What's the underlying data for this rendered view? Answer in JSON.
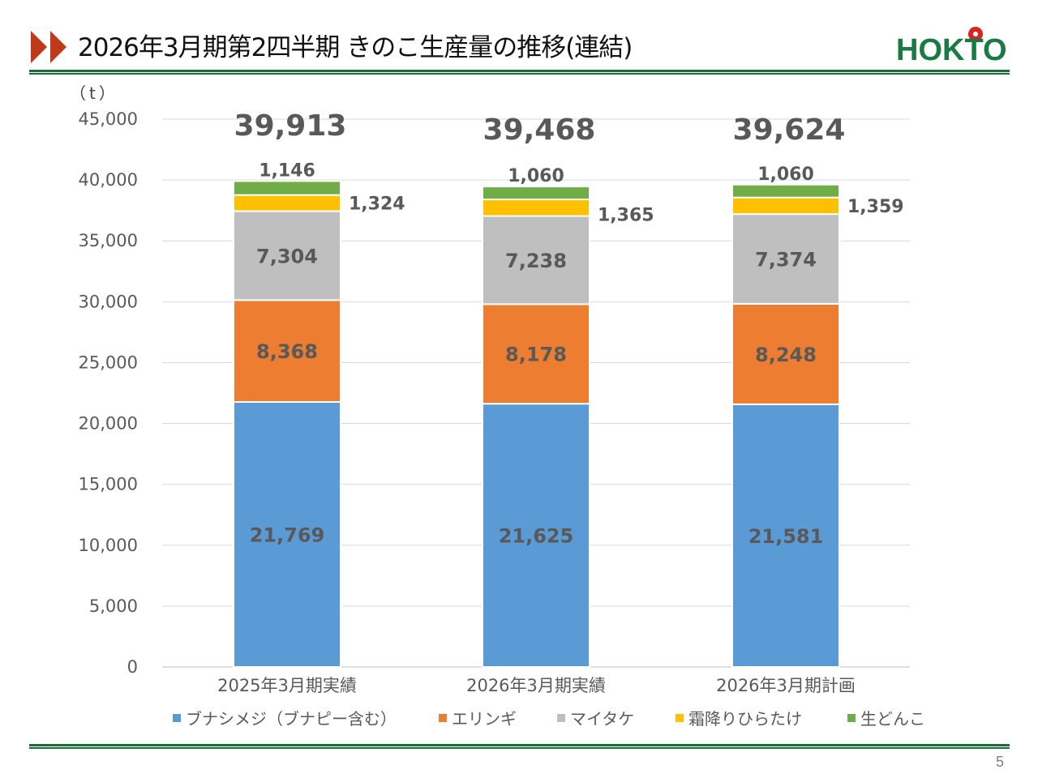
{
  "header": {
    "title": "2026年3月期第2四半期 きのこ生産量の推移(連結)",
    "logo_text": "HOKTO"
  },
  "page_number": "5",
  "colors": {
    "accent_red": "#c0391b",
    "rule_green": "#1e6b3c",
    "logo_green": "#1a7a43",
    "logo_red": "#d7261f"
  },
  "chart_data": {
    "type": "bar",
    "stacked": true,
    "unit_label": "（t）",
    "categories": [
      "2025年3月期実績",
      "2026年3月期実績",
      "2026年3月期計画"
    ],
    "series": [
      {
        "name": "ブナシメジ（ブナピー含む）",
        "color": "#5b9bd5",
        "values": [
          21769,
          21625,
          21581
        ],
        "labels": [
          "21,769",
          "21,625",
          "21,581"
        ]
      },
      {
        "name": "エリンギ",
        "color": "#ed7d31",
        "values": [
          8368,
          8178,
          8248
        ],
        "labels": [
          "8,368",
          "8,178",
          "8,248"
        ]
      },
      {
        "name": "マイタケ",
        "color": "#bfbfbf",
        "values": [
          7304,
          7238,
          7374
        ],
        "labels": [
          "7,304",
          "7,238",
          "7,374"
        ]
      },
      {
        "name": "霜降りひらたけ",
        "color": "#ffc000",
        "values": [
          1324,
          1365,
          1359
        ],
        "labels": [
          "1,324",
          "1,365",
          "1,359"
        ]
      },
      {
        "name": "生どんこ",
        "color": "#70ad47",
        "values": [
          1146,
          1060,
          1060
        ],
        "labels": [
          "1,146",
          "1,060",
          "1,060"
        ]
      }
    ],
    "totals": [
      "39,913",
      "39,468",
      "39,624"
    ],
    "ylim": [
      0,
      45000
    ],
    "yticks": [
      0,
      5000,
      10000,
      15000,
      20000,
      25000,
      30000,
      35000,
      40000,
      45000
    ],
    "ytick_labels": [
      "0",
      "5,000",
      "10,000",
      "15,000",
      "20,000",
      "25,000",
      "30,000",
      "35,000",
      "40,000",
      "45,000"
    ],
    "grid": true,
    "legend": "bottom"
  }
}
